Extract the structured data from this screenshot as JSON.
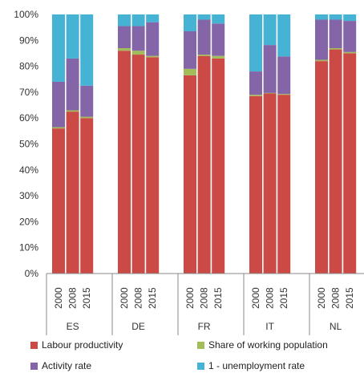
{
  "chart_data": {
    "type": "bar",
    "stacked": true,
    "y_tick_labels": [
      "0%",
      "10%",
      "20%",
      "30%",
      "40%",
      "50%",
      "60%",
      "70%",
      "80%",
      "90%",
      "100%"
    ],
    "ylim": [
      0,
      100
    ],
    "grid": false,
    "legend_position": "bottom",
    "groups": [
      {
        "label": "ES",
        "years": [
          "2000",
          "2008",
          "2015"
        ]
      },
      {
        "label": "DE",
        "years": [
          "2000",
          "2008",
          "2015"
        ]
      },
      {
        "label": "FR",
        "years": [
          "2000",
          "2008",
          "2015"
        ]
      },
      {
        "label": "IT",
        "years": [
          "2000",
          "2008",
          "2015"
        ]
      },
      {
        "label": "NL",
        "years": [
          "2000",
          "2008",
          "2015"
        ]
      }
    ],
    "series": [
      {
        "name": "Labour productivity",
        "color": "#cc4a45",
        "values": [
          56,
          62.5,
          60,
          86,
          84.5,
          83.5,
          76.5,
          84,
          83,
          68.5,
          69.5,
          69,
          82,
          86.5,
          85
        ]
      },
      {
        "name": "Share of working population",
        "color": "#a2bc5a",
        "values": [
          0.5,
          0.5,
          0.5,
          1,
          1.5,
          0.5,
          2.5,
          0.5,
          1,
          0.5,
          0.2,
          0.3,
          0.5,
          0.5,
          0.5
        ]
      },
      {
        "name": "Activity rate",
        "color": "#8465a8",
        "values": [
          17.5,
          20,
          12,
          8.5,
          9.5,
          13,
          14.5,
          13.5,
          12.5,
          9,
          18.5,
          14.5,
          15.5,
          11,
          12
        ]
      },
      {
        "name": "1 - unemployment rate",
        "color": "#47b3d4",
        "values": [
          26,
          17,
          27.5,
          4.5,
          4.5,
          3,
          6.5,
          2,
          3.5,
          22,
          11.8,
          16.2,
          2,
          2,
          2.5
        ]
      }
    ]
  }
}
